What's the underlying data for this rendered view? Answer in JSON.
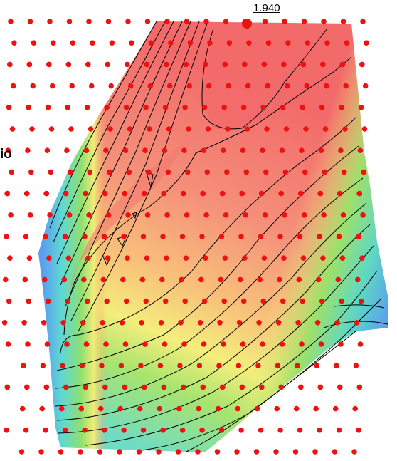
{
  "map": {
    "max_value_label": "1.940",
    "edge_label": "io",
    "colors": {
      "high": "#f26a6a",
      "mid_high": "#f7a26e",
      "mid": "#f4f07a",
      "mid_low": "#9ee06a",
      "low": "#5fd8c2",
      "lowest": "#5a9ef0",
      "points": "#ee1111",
      "contours": "#000000"
    }
  }
}
